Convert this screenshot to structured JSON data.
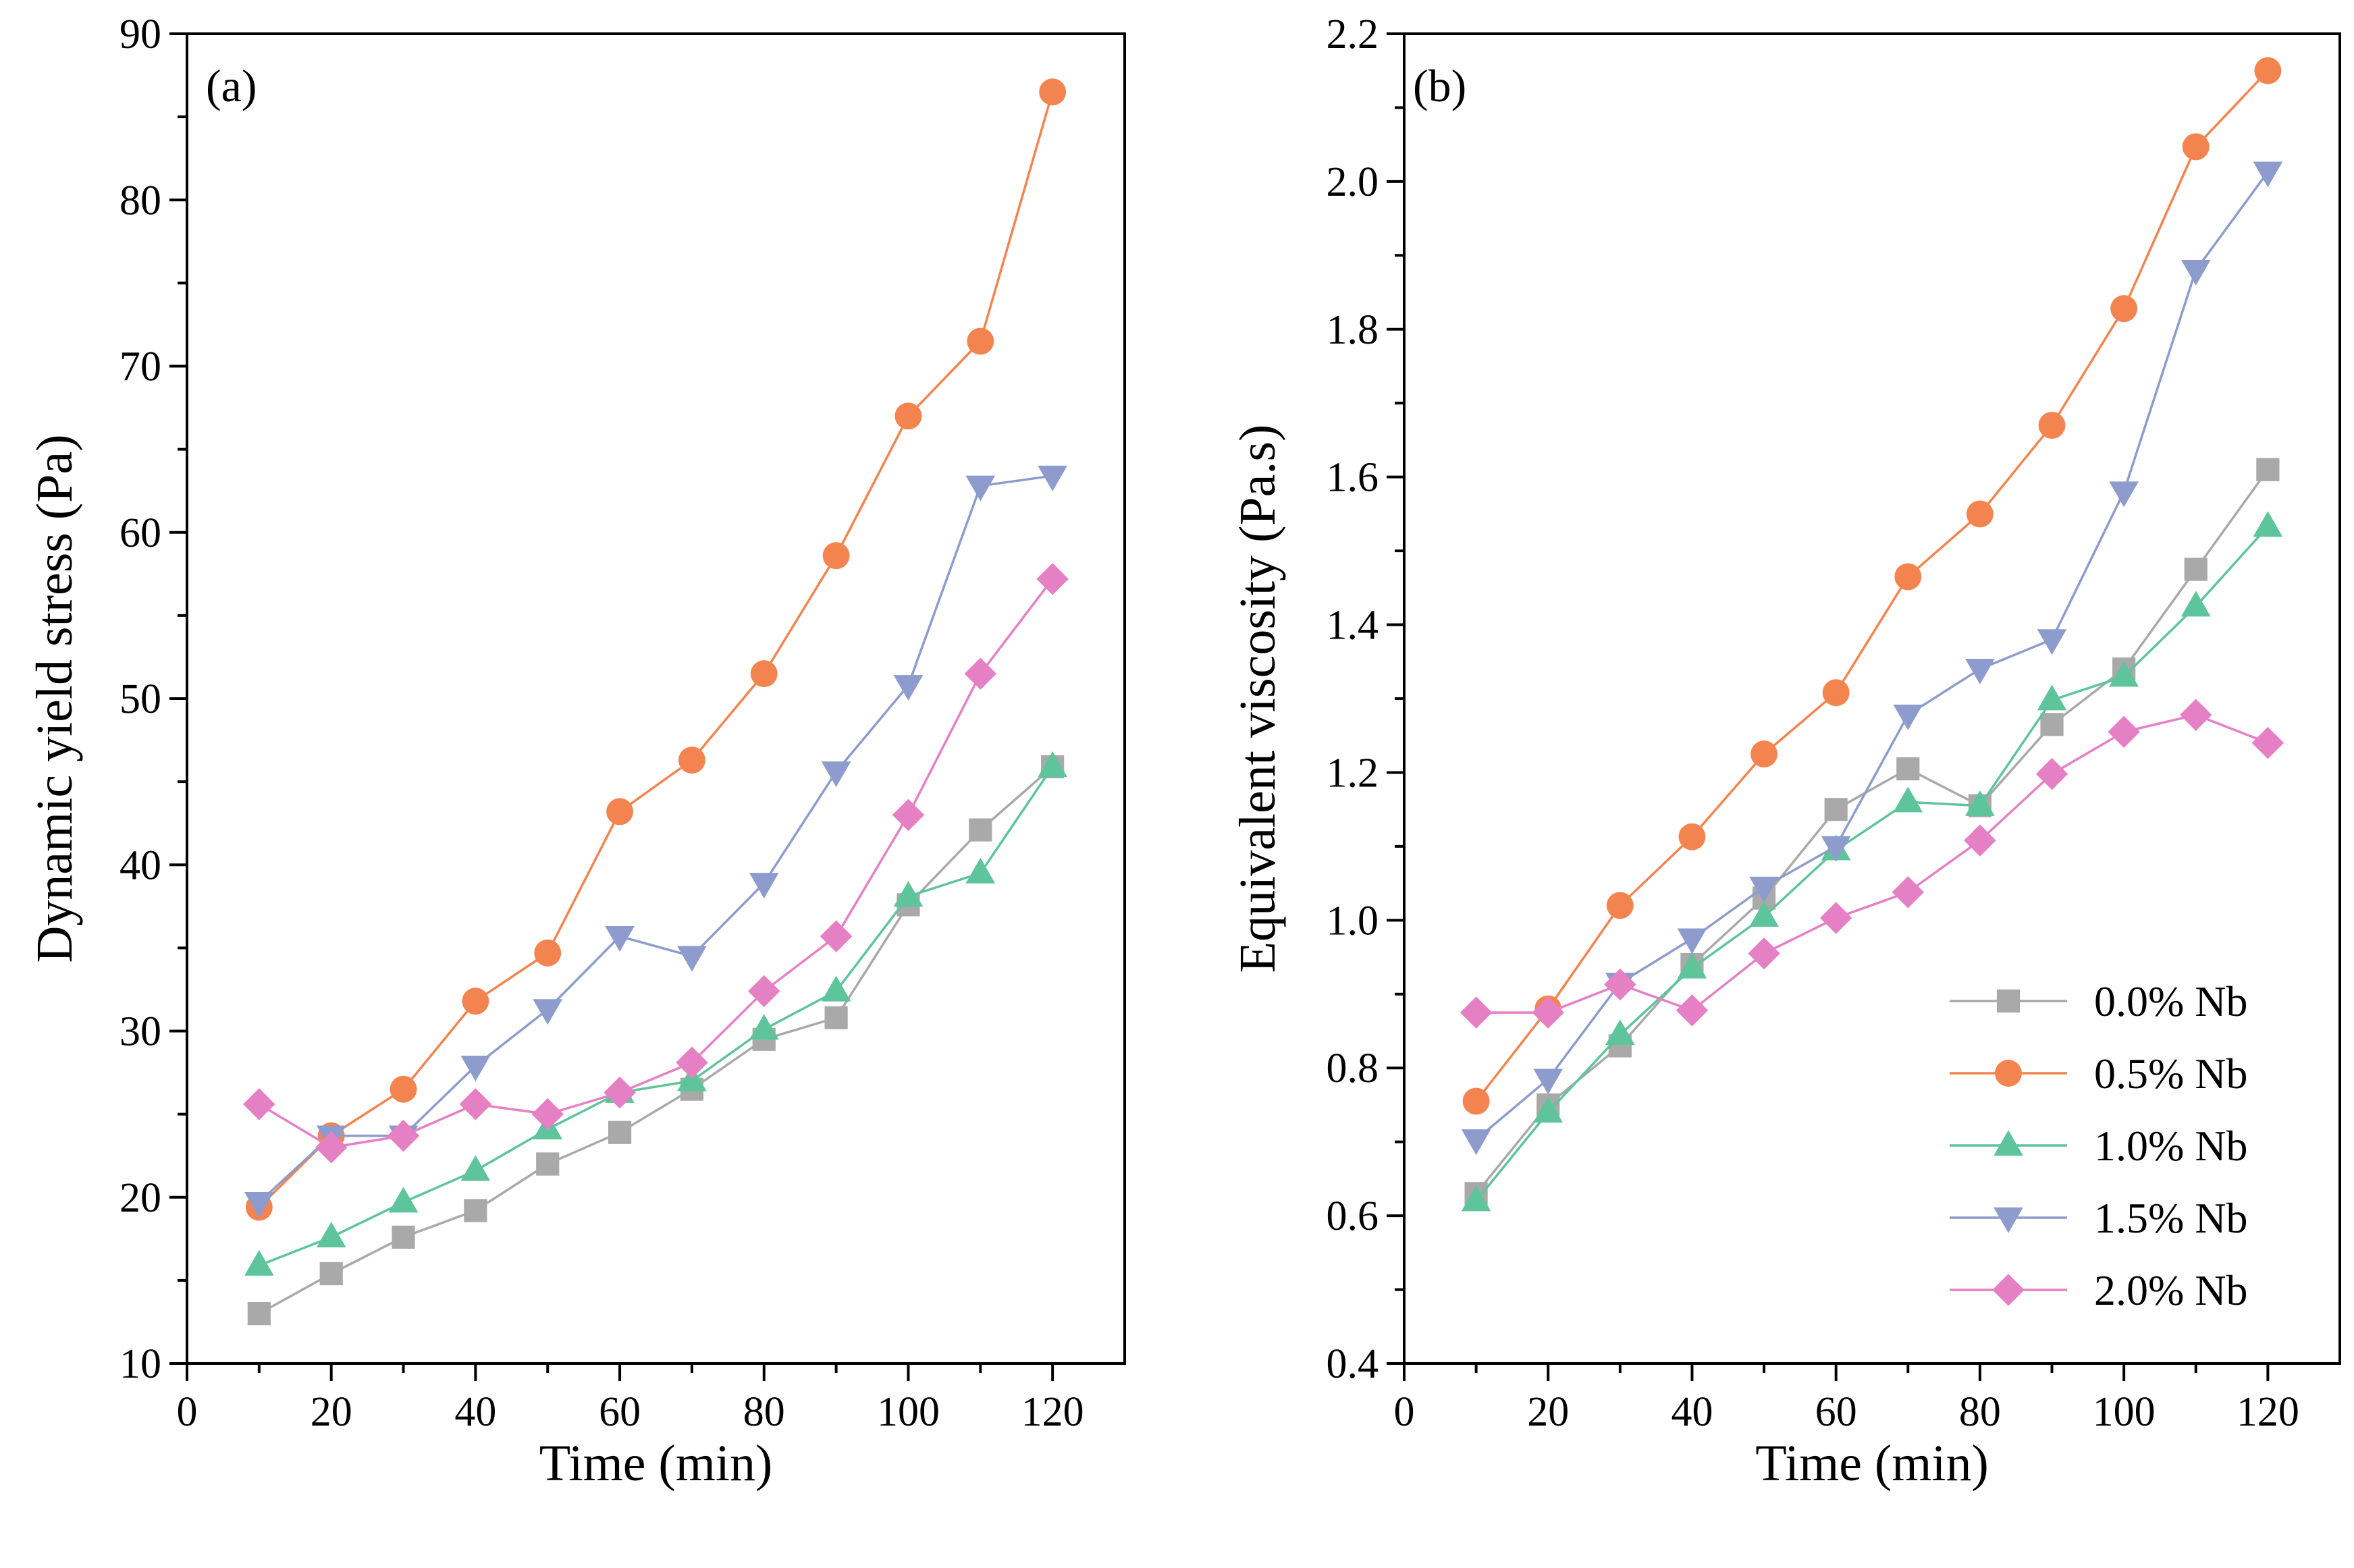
{
  "figure": {
    "description_labels": [
      "(a)",
      "(b)"
    ]
  },
  "series_style": [
    {
      "name": "0.0% Nb",
      "color": "#a9a9a9",
      "marker": "square"
    },
    {
      "name": "0.5% Nb",
      "color": "#f4844f",
      "marker": "circle"
    },
    {
      "name": "1.0% Nb",
      "color": "#5ec49b",
      "marker": "triangle-up"
    },
    {
      "name": "1.5% Nb",
      "color": "#8d9ccd",
      "marker": "triangle-down"
    },
    {
      "name": "2.0% Nb",
      "color": "#e680c4",
      "marker": "diamond"
    }
  ],
  "chart_data": [
    {
      "type": "line",
      "panel_label": "(a)",
      "title": "",
      "xlabel": "Time (min)",
      "ylabel": "Dynamic yield stress (Pa)",
      "xlim": [
        0,
        130
      ],
      "ylim": [
        10,
        90
      ],
      "xticks": [
        0,
        20,
        40,
        60,
        80,
        100,
        120
      ],
      "xtick_labels": [
        "0",
        "20",
        "40",
        "60",
        "80",
        "100",
        "120"
      ],
      "yticks": [
        10,
        20,
        30,
        40,
        50,
        60,
        70,
        80,
        90
      ],
      "ytick_labels": [
        "10",
        "20",
        "30",
        "40",
        "50",
        "60",
        "70",
        "80",
        "90"
      ],
      "x": [
        10,
        20,
        30,
        40,
        50,
        60,
        70,
        80,
        90,
        100,
        110,
        120
      ],
      "grid": false,
      "legend": false,
      "series": [
        {
          "name": "0.0% Nb",
          "values": [
            13.0,
            15.4,
            17.6,
            19.2,
            22.0,
            23.9,
            26.5,
            29.5,
            30.8,
            37.6,
            42.1,
            45.9
          ]
        },
        {
          "name": "0.5% Nb",
          "values": [
            19.4,
            23.7,
            26.5,
            31.8,
            34.7,
            43.2,
            46.3,
            51.5,
            58.6,
            67.0,
            71.5,
            86.5
          ]
        },
        {
          "name": "1.0% Nb",
          "values": [
            15.9,
            17.6,
            19.7,
            21.6,
            24.1,
            26.3,
            27.0,
            30.1,
            32.4,
            38.1,
            39.5,
            45.9
          ]
        },
        {
          "name": "1.5% Nb",
          "values": [
            19.7,
            23.7,
            23.7,
            27.9,
            31.3,
            35.7,
            34.5,
            38.9,
            45.6,
            50.8,
            62.8,
            63.4
          ]
        },
        {
          "name": "2.0% Nb",
          "values": [
            25.6,
            23.0,
            23.7,
            25.6,
            25.0,
            26.3,
            28.1,
            32.4,
            35.7,
            43.0,
            51.5,
            57.2
          ]
        }
      ]
    },
    {
      "type": "line",
      "panel_label": "(b)",
      "title": "",
      "xlabel": "Time (min)",
      "ylabel": "Equivalent viscosity (Pa.s)",
      "xlim": [
        0,
        130
      ],
      "ylim": [
        0.4,
        2.2
      ],
      "xticks": [
        0,
        20,
        40,
        60,
        80,
        100,
        120
      ],
      "xtick_labels": [
        "0",
        "20",
        "40",
        "60",
        "80",
        "100",
        "120"
      ],
      "yticks": [
        0.4,
        0.6,
        0.8,
        1.0,
        1.2,
        1.4,
        1.6,
        1.8,
        2.0,
        2.2
      ],
      "ytick_labels": [
        "0.4",
        "0.6",
        "0.8",
        "1.0",
        "1.2",
        "1.4",
        "1.6",
        "1.8",
        "2.0",
        "2.2"
      ],
      "x": [
        10,
        20,
        30,
        40,
        50,
        60,
        70,
        80,
        90,
        100,
        110,
        120
      ],
      "grid": false,
      "legend": "bottom-right",
      "series": [
        {
          "name": "0.0% Nb",
          "values": [
            0.63,
            0.75,
            0.83,
            0.94,
            1.03,
            1.15,
            1.205,
            1.155,
            1.265,
            1.34,
            1.475,
            1.61
          ]
        },
        {
          "name": "0.5% Nb",
          "values": [
            0.755,
            0.88,
            1.02,
            1.113,
            1.225,
            1.308,
            1.465,
            1.55,
            1.67,
            1.828,
            2.047,
            2.15
          ]
        },
        {
          "name": "1.0% Nb",
          "values": [
            0.62,
            0.74,
            0.845,
            0.935,
            1.005,
            1.095,
            1.16,
            1.155,
            1.298,
            1.33,
            1.425,
            1.533
          ]
        },
        {
          "name": "1.5% Nb",
          "values": [
            0.703,
            0.785,
            0.915,
            0.975,
            1.045,
            1.1,
            1.278,
            1.34,
            1.38,
            1.58,
            1.88,
            2.013
          ]
        },
        {
          "name": "2.0% Nb",
          "values": [
            0.875,
            0.875,
            0.913,
            0.878,
            0.955,
            1.003,
            1.038,
            1.108,
            1.198,
            1.255,
            1.278,
            1.24
          ]
        }
      ]
    }
  ]
}
